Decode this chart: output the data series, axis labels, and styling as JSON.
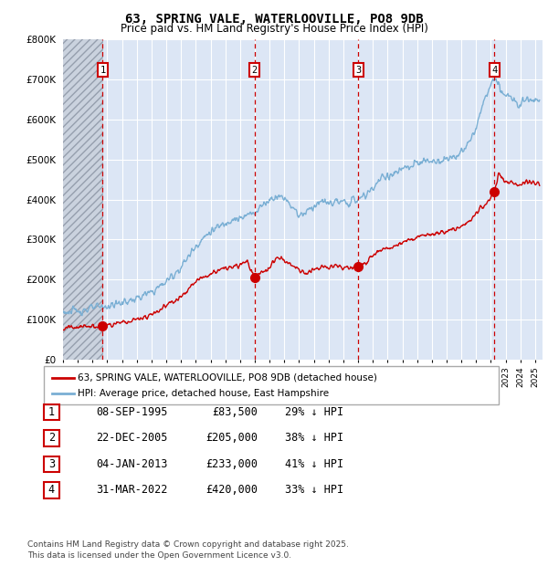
{
  "title": "63, SPRING VALE, WATERLOOVILLE, PO8 9DB",
  "subtitle": "Price paid vs. HM Land Registry's House Price Index (HPI)",
  "ylim": [
    0,
    800000
  ],
  "yticks": [
    0,
    100000,
    200000,
    300000,
    400000,
    500000,
    600000,
    700000,
    800000
  ],
  "ytick_labels": [
    "£0",
    "£100K",
    "£200K",
    "£300K",
    "£400K",
    "£500K",
    "£600K",
    "£700K",
    "£800K"
  ],
  "xlim_start": 1993.0,
  "xlim_end": 2025.5,
  "hatch_end": 1995.7,
  "transaction_years": [
    1995.69,
    2005.98,
    2013.01,
    2022.25
  ],
  "transaction_labels": [
    "1",
    "2",
    "3",
    "4"
  ],
  "transaction_prices": [
    83500,
    205000,
    233000,
    420000
  ],
  "legend_line1": "63, SPRING VALE, WATERLOOVILLE, PO8 9DB (detached house)",
  "legend_line2": "HPI: Average price, detached house, East Hampshire",
  "table_rows": [
    {
      "num": "1",
      "date": "08-SEP-1995",
      "price": "£83,500",
      "hpi": "29% ↓ HPI"
    },
    {
      "num": "2",
      "date": "22-DEC-2005",
      "price": "£205,000",
      "hpi": "38% ↓ HPI"
    },
    {
      "num": "3",
      "date": "04-JAN-2013",
      "price": "£233,000",
      "hpi": "41% ↓ HPI"
    },
    {
      "num": "4",
      "date": "31-MAR-2022",
      "price": "£420,000",
      "hpi": "33% ↓ HPI"
    }
  ],
  "footnote1": "Contains HM Land Registry data © Crown copyright and database right 2025.",
  "footnote2": "This data is licensed under the Open Government Licence v3.0.",
  "red_line_color": "#cc0000",
  "blue_line_color": "#7aafd4",
  "bg_color": "#dce6f5",
  "grid_color": "#ffffff",
  "title_fontsize": 10,
  "subtitle_fontsize": 8.5
}
